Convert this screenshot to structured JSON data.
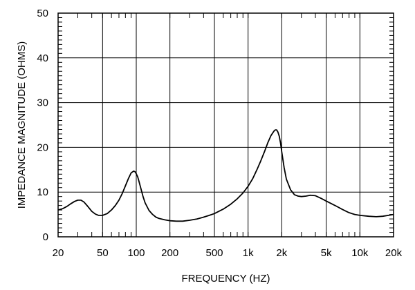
{
  "chart_data": {
    "type": "line",
    "xscale": "log",
    "xlim": [
      20,
      20000
    ],
    "ylim": [
      0,
      50
    ],
    "grid": true,
    "xlabel": "FREQUENCY  (HZ)",
    "ylabel": "IMPEDANCE MAGNITUDE  (OHMS)",
    "xticks": [
      {
        "value": 20,
        "label": "20"
      },
      {
        "value": 50,
        "label": "50"
      },
      {
        "value": 100,
        "label": "100"
      },
      {
        "value": 200,
        "label": "200"
      },
      {
        "value": 500,
        "label": "500"
      },
      {
        "value": 1000,
        "label": "1k"
      },
      {
        "value": 2000,
        "label": "2k"
      },
      {
        "value": 5000,
        "label": "5k"
      },
      {
        "value": 10000,
        "label": "10k"
      },
      {
        "value": 20000,
        "label": "20k"
      }
    ],
    "yticks": [
      {
        "value": 0,
        "label": "0"
      },
      {
        "value": 10,
        "label": "10"
      },
      {
        "value": 20,
        "label": "20"
      },
      {
        "value": 30,
        "label": "30"
      },
      {
        "value": 40,
        "label": "40"
      },
      {
        "value": 50,
        "label": "50"
      }
    ],
    "series": [
      {
        "color": "#000000",
        "x": [
          20,
          22,
          24,
          26,
          28,
          30,
          32,
          34,
          36,
          38,
          40,
          43,
          46,
          50,
          55,
          60,
          65,
          70,
          75,
          80,
          85,
          90,
          95,
          98,
          100,
          103,
          106,
          110,
          115,
          120,
          130,
          140,
          150,
          160,
          180,
          200,
          230,
          260,
          300,
          350,
          400,
          450,
          500,
          600,
          700,
          800,
          900,
          1000,
          1100,
          1200,
          1300,
          1400,
          1500,
          1600,
          1700,
          1750,
          1800,
          1850,
          1900,
          1950,
          2000,
          2100,
          2200,
          2400,
          2600,
          2800,
          3000,
          3300,
          3600,
          4000,
          4500,
          5000,
          6000,
          7000,
          8000,
          9000,
          10000,
          12000,
          14000,
          16000,
          18000,
          20000
        ],
        "y": [
          6.0,
          6.3,
          6.8,
          7.4,
          7.9,
          8.2,
          8.2,
          7.8,
          7.1,
          6.4,
          5.7,
          5.1,
          4.8,
          4.8,
          5.2,
          6.0,
          7.0,
          8.2,
          9.7,
          11.4,
          13.0,
          14.3,
          14.7,
          14.5,
          14.1,
          13.4,
          12.3,
          10.8,
          9.0,
          7.6,
          5.9,
          5.0,
          4.4,
          4.1,
          3.8,
          3.6,
          3.5,
          3.5,
          3.7,
          4.0,
          4.4,
          4.8,
          5.2,
          6.2,
          7.3,
          8.5,
          9.8,
          11.3,
          13.0,
          15.0,
          17.0,
          19.0,
          21.0,
          22.6,
          23.6,
          23.9,
          23.9,
          23.4,
          22.5,
          21.0,
          19.0,
          15.5,
          12.9,
          10.5,
          9.4,
          9.1,
          9.0,
          9.1,
          9.3,
          9.2,
          8.6,
          8.0,
          7.0,
          6.1,
          5.4,
          5.0,
          4.8,
          4.6,
          4.5,
          4.6,
          4.8,
          5.0
        ]
      }
    ]
  }
}
